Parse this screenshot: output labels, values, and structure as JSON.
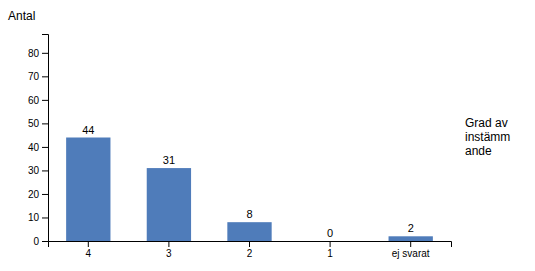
{
  "chart_data": {
    "type": "bar",
    "categories": [
      "4",
      "3",
      "2",
      "1",
      "ej svarat"
    ],
    "values": [
      44,
      31,
      8,
      0,
      2
    ],
    "color": "#4f7cba",
    "ylabel": "Antal",
    "xlabel": "Grad av\ninstämm\nande",
    "ylim": [
      0,
      88
    ],
    "yticks": [
      0,
      10,
      20,
      30,
      40,
      50,
      60,
      70,
      80
    ],
    "data_labels": true,
    "grid": false
  }
}
